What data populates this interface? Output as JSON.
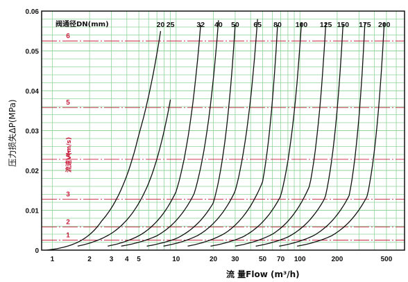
{
  "chart_data": {
    "type": "line",
    "ylabel": "压力损失ΔP(MPa)",
    "xlabel": "流  量Flow (m³/h)",
    "x_scale": "log",
    "xlim": [
      0.82,
      700
    ],
    "ylim": [
      0,
      0.06
    ],
    "grid": true,
    "x_ticks": [
      1,
      2,
      3,
      4,
      5,
      10,
      20,
      30,
      50,
      70,
      100,
      200,
      500
    ],
    "x_tick_labels": [
      "1",
      "2",
      "3",
      "4",
      "5",
      "10",
      "20",
      "30",
      "50",
      "70",
      "100",
      "200",
      "500"
    ],
    "y_ticks": [
      0,
      0.01,
      0.02,
      0.03,
      0.04,
      0.05,
      0.06
    ],
    "y_tick_labels": [
      "0",
      "0.01",
      "0.02",
      "0.03",
      "0.04",
      "0.05",
      "0.06"
    ],
    "dn_title": "阀通径DN(mm)",
    "velocity_title": "流速V(m/s)",
    "velocity_labels": [
      "1",
      "2",
      "3",
      "4",
      "5",
      "6"
    ],
    "velocity_pressure": [
      0.0025,
      0.0058,
      0.0128,
      0.0228,
      0.0358,
      0.0525
    ],
    "series": [
      {
        "name": "20",
        "x": [
          0.9,
          2.5,
          5.0,
          7.5
        ],
        "y": [
          0,
          0.0073,
          0.029,
          0.055
        ]
      },
      {
        "name": "25",
        "x": [
          1.6,
          3.0,
          6.0,
          9.0
        ],
        "y": [
          0.001,
          0.0042,
          0.0168,
          0.0378
        ]
      },
      {
        "name": "32",
        "x": [
          2.8,
          5.2,
          10.0,
          15.8
        ],
        "y": [
          0.001,
          0.0039,
          0.0147,
          0.0566
        ]
      },
      {
        "name": "40",
        "x": [
          3.6,
          7.0,
          14.0,
          22.0
        ],
        "y": [
          0.001,
          0.0036,
          0.0142,
          0.0577
        ]
      },
      {
        "name": "50",
        "x": [
          5.8,
          10.0,
          20.0,
          30.0
        ],
        "y": [
          0.001,
          0.0029,
          0.0119,
          0.0565
        ]
      },
      {
        "name": "65",
        "x": [
          7.9,
          15.0,
          30.0,
          45.5
        ],
        "y": [
          0.001,
          0.0037,
          0.0148,
          0.058
        ]
      },
      {
        "name": "80",
        "x": [
          12.4,
          25.0,
          50.0,
          66.0
        ],
        "y": [
          0.001,
          0.0043,
          0.0172,
          0.0565
        ]
      },
      {
        "name": "100",
        "x": [
          19.0,
          35.0,
          70.0,
          103.0
        ],
        "y": [
          0.001,
          0.0034,
          0.0136,
          0.0571
        ]
      },
      {
        "name": "125",
        "x": [
          30.0,
          60.0,
          120.0,
          162.0
        ],
        "y": [
          0.001,
          0.004,
          0.0162,
          0.057
        ]
      },
      {
        "name": "150",
        "x": [
          44.0,
          80.0,
          160.0,
          223.0
        ],
        "y": [
          0.001,
          0.0033,
          0.0132,
          0.0568
        ]
      },
      {
        "name": "175",
        "x": [
          68.0,
          130.0,
          250.0,
          335.0
        ],
        "y": [
          0.001,
          0.0037,
          0.0137,
          0.057
        ]
      },
      {
        "name": "200",
        "x": [
          95.0,
          180.0,
          350.0,
          480.0
        ],
        "y": [
          0.001,
          0.0036,
          0.0136,
          0.0572
        ]
      }
    ]
  },
  "colors": {
    "grid": "#8fd49a",
    "velocity_lines": "#c81e3c",
    "curves": "#111111"
  }
}
